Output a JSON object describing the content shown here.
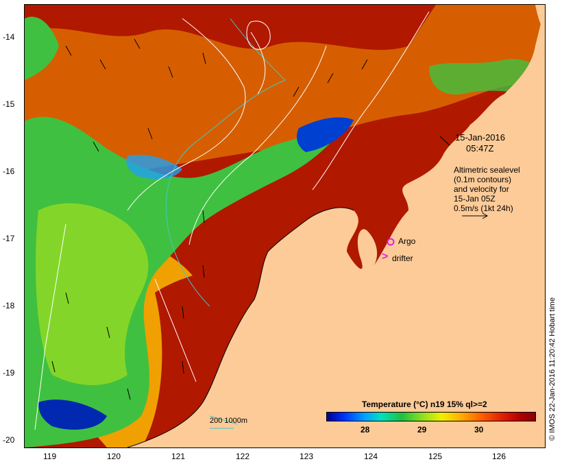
{
  "axes": {
    "x_ticks": [
      "119",
      "120",
      "121",
      "122",
      "123",
      "124",
      "125",
      "126"
    ],
    "y_ticks": [
      "-14",
      "-15",
      "-16",
      "-17",
      "-18",
      "-19",
      "-20"
    ]
  },
  "timestamp": {
    "date": "15-Jan-2016",
    "time": "05:47Z"
  },
  "legend_text": [
    "Altimetric sealevel",
    "(0.1m contours)",
    "and velocity for",
    "15-Jan 05Z",
    "0.5m/s (1kt 24h)"
  ],
  "markers": {
    "argo": "Argo",
    "drifter": "drifter",
    "drifter_symbol": ">"
  },
  "isobath_label": "200  1000m",
  "colorbar": {
    "title": "Temperature (°C) n19 15% ql>=2",
    "ticks": [
      "28",
      "29",
      "30"
    ]
  },
  "credit": "© IMOS 22-Jan-2016 11:20:42 Hobart time",
  "colors": {
    "land": "#fccb98",
    "warm": "#b01800",
    "mid": "#f0a000",
    "cool": "#30c040",
    "cold": "#0040d0",
    "contour": "#ffffff",
    "isobath": "#40c8c8",
    "argo": "#e020e0"
  }
}
